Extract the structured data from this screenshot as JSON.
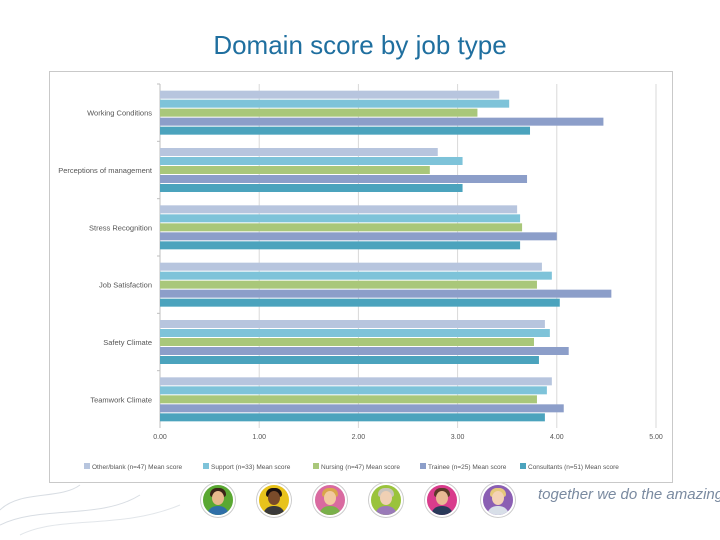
{
  "slide": {
    "title": "Domain score by job type",
    "tagline": "together we do the amazing"
  },
  "colors": {
    "title": "#1f6f9f",
    "series": [
      "#b7c5de",
      "#7ec3d9",
      "#a9c77a",
      "#8c9ec9",
      "#4ba3bd"
    ],
    "avatar_rings": [
      "#5aa832",
      "#e8c31c",
      "#d96aa0",
      "#9ac33c",
      "#d93c8c",
      "#8b5fb3"
    ]
  },
  "footer": {
    "avatars": [
      "avatar-woman-dark-hair",
      "avatar-man",
      "avatar-woman-blonde",
      "avatar-older-woman",
      "avatar-man-short-hair",
      "avatar-woman-light-hair"
    ]
  },
  "chart_data": {
    "type": "bar",
    "orientation": "horizontal",
    "title": "",
    "xlabel": "",
    "ylabel": "",
    "xlim": [
      0,
      5
    ],
    "xticks": [
      "0.00",
      "1.00",
      "2.00",
      "3.00",
      "4.00",
      "5.00"
    ],
    "grid": "vertical",
    "legend_position": "bottom",
    "categories": [
      "Working Conditions",
      "Perceptions of management",
      "Stress Recognition",
      "Job Satisfaction",
      "Safety Climate",
      "Teamwork Climate"
    ],
    "series": [
      {
        "name": "Other/blank (n=47) Mean score",
        "values": [
          3.42,
          2.8,
          3.6,
          3.85,
          3.88,
          3.95
        ]
      },
      {
        "name": "Support (n=33) Mean score",
        "values": [
          3.52,
          3.05,
          3.63,
          3.95,
          3.93,
          3.9
        ]
      },
      {
        "name": "Nursing (n=47) Mean score",
        "values": [
          3.2,
          2.72,
          3.65,
          3.8,
          3.77,
          3.8
        ]
      },
      {
        "name": "Trainee (n=25) Mean score",
        "values": [
          4.47,
          3.7,
          4.0,
          4.55,
          4.12,
          4.07
        ]
      },
      {
        "name": "Consultants (n=51) Mean score",
        "values": [
          3.73,
          3.05,
          3.63,
          4.03,
          3.82,
          3.88
        ]
      }
    ]
  }
}
